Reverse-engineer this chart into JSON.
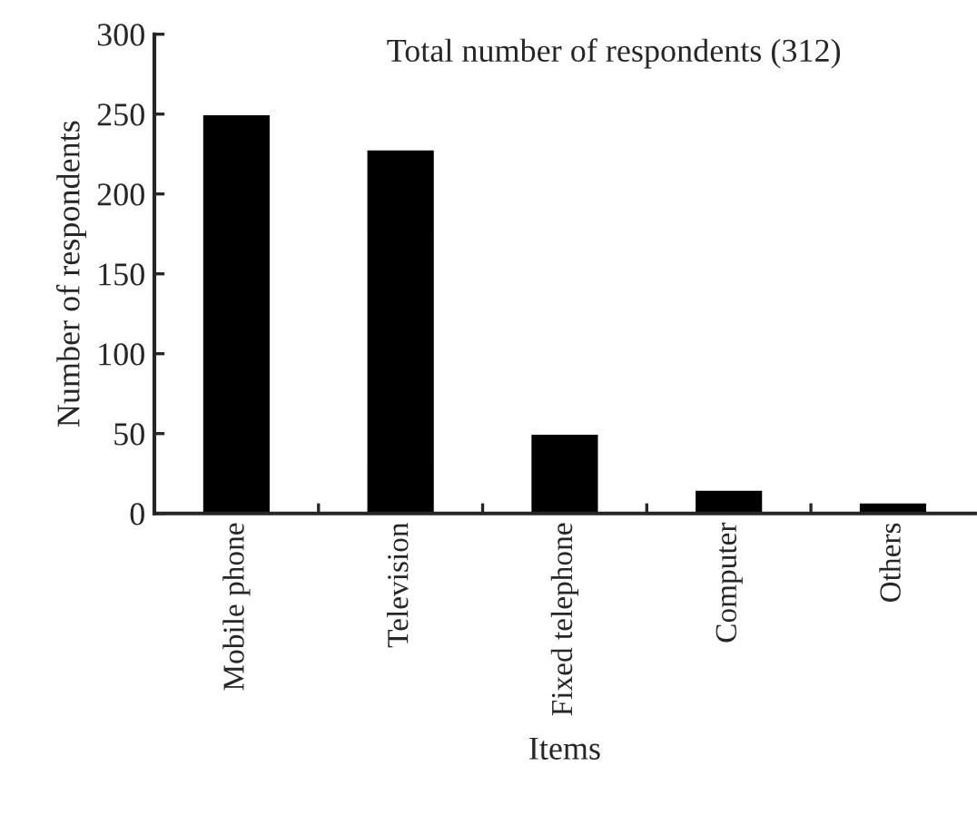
{
  "chart_data": {
    "type": "bar",
    "title": "Total number of respondents (312)",
    "xlabel": "Items",
    "ylabel": "Number of respondents",
    "categories": [
      "Mobile phone",
      "Television",
      "Fixed telephone",
      "Computer",
      "Others"
    ],
    "values": [
      250,
      228,
      50,
      15,
      7
    ],
    "color": "#000000",
    "ylim": [
      0,
      300
    ],
    "yticks": [
      0,
      50,
      100,
      150,
      200,
      250,
      300
    ],
    "grid": false
  }
}
